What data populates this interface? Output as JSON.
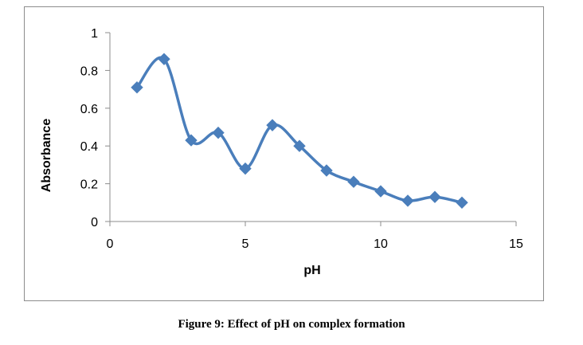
{
  "figure": {
    "caption": "Figure 9: Effect of pH on complex formation"
  },
  "chart_data": {
    "type": "line",
    "xlabel": "pH",
    "ylabel": "Absorbance",
    "xlim": [
      0,
      15
    ],
    "ylim": [
      0,
      1
    ],
    "xticks": [
      0,
      5,
      10,
      15
    ],
    "yticks": [
      0,
      0.2,
      0.4,
      0.6,
      0.8,
      1
    ],
    "ytick_labels": [
      "0",
      "0.2",
      "0.4",
      "0.6",
      "0.8",
      "1"
    ],
    "grid": false,
    "legend": "none",
    "series": [
      {
        "color": "#4a7ebb",
        "marker": "diamond",
        "smoothed": true,
        "x": [
          1,
          2,
          3,
          4,
          5,
          6,
          7,
          8,
          9,
          10,
          11,
          12,
          13
        ],
        "y": [
          0.71,
          0.86,
          0.43,
          0.47,
          0.28,
          0.51,
          0.4,
          0.27,
          0.21,
          0.16,
          0.11,
          0.13,
          0.1
        ]
      }
    ]
  }
}
